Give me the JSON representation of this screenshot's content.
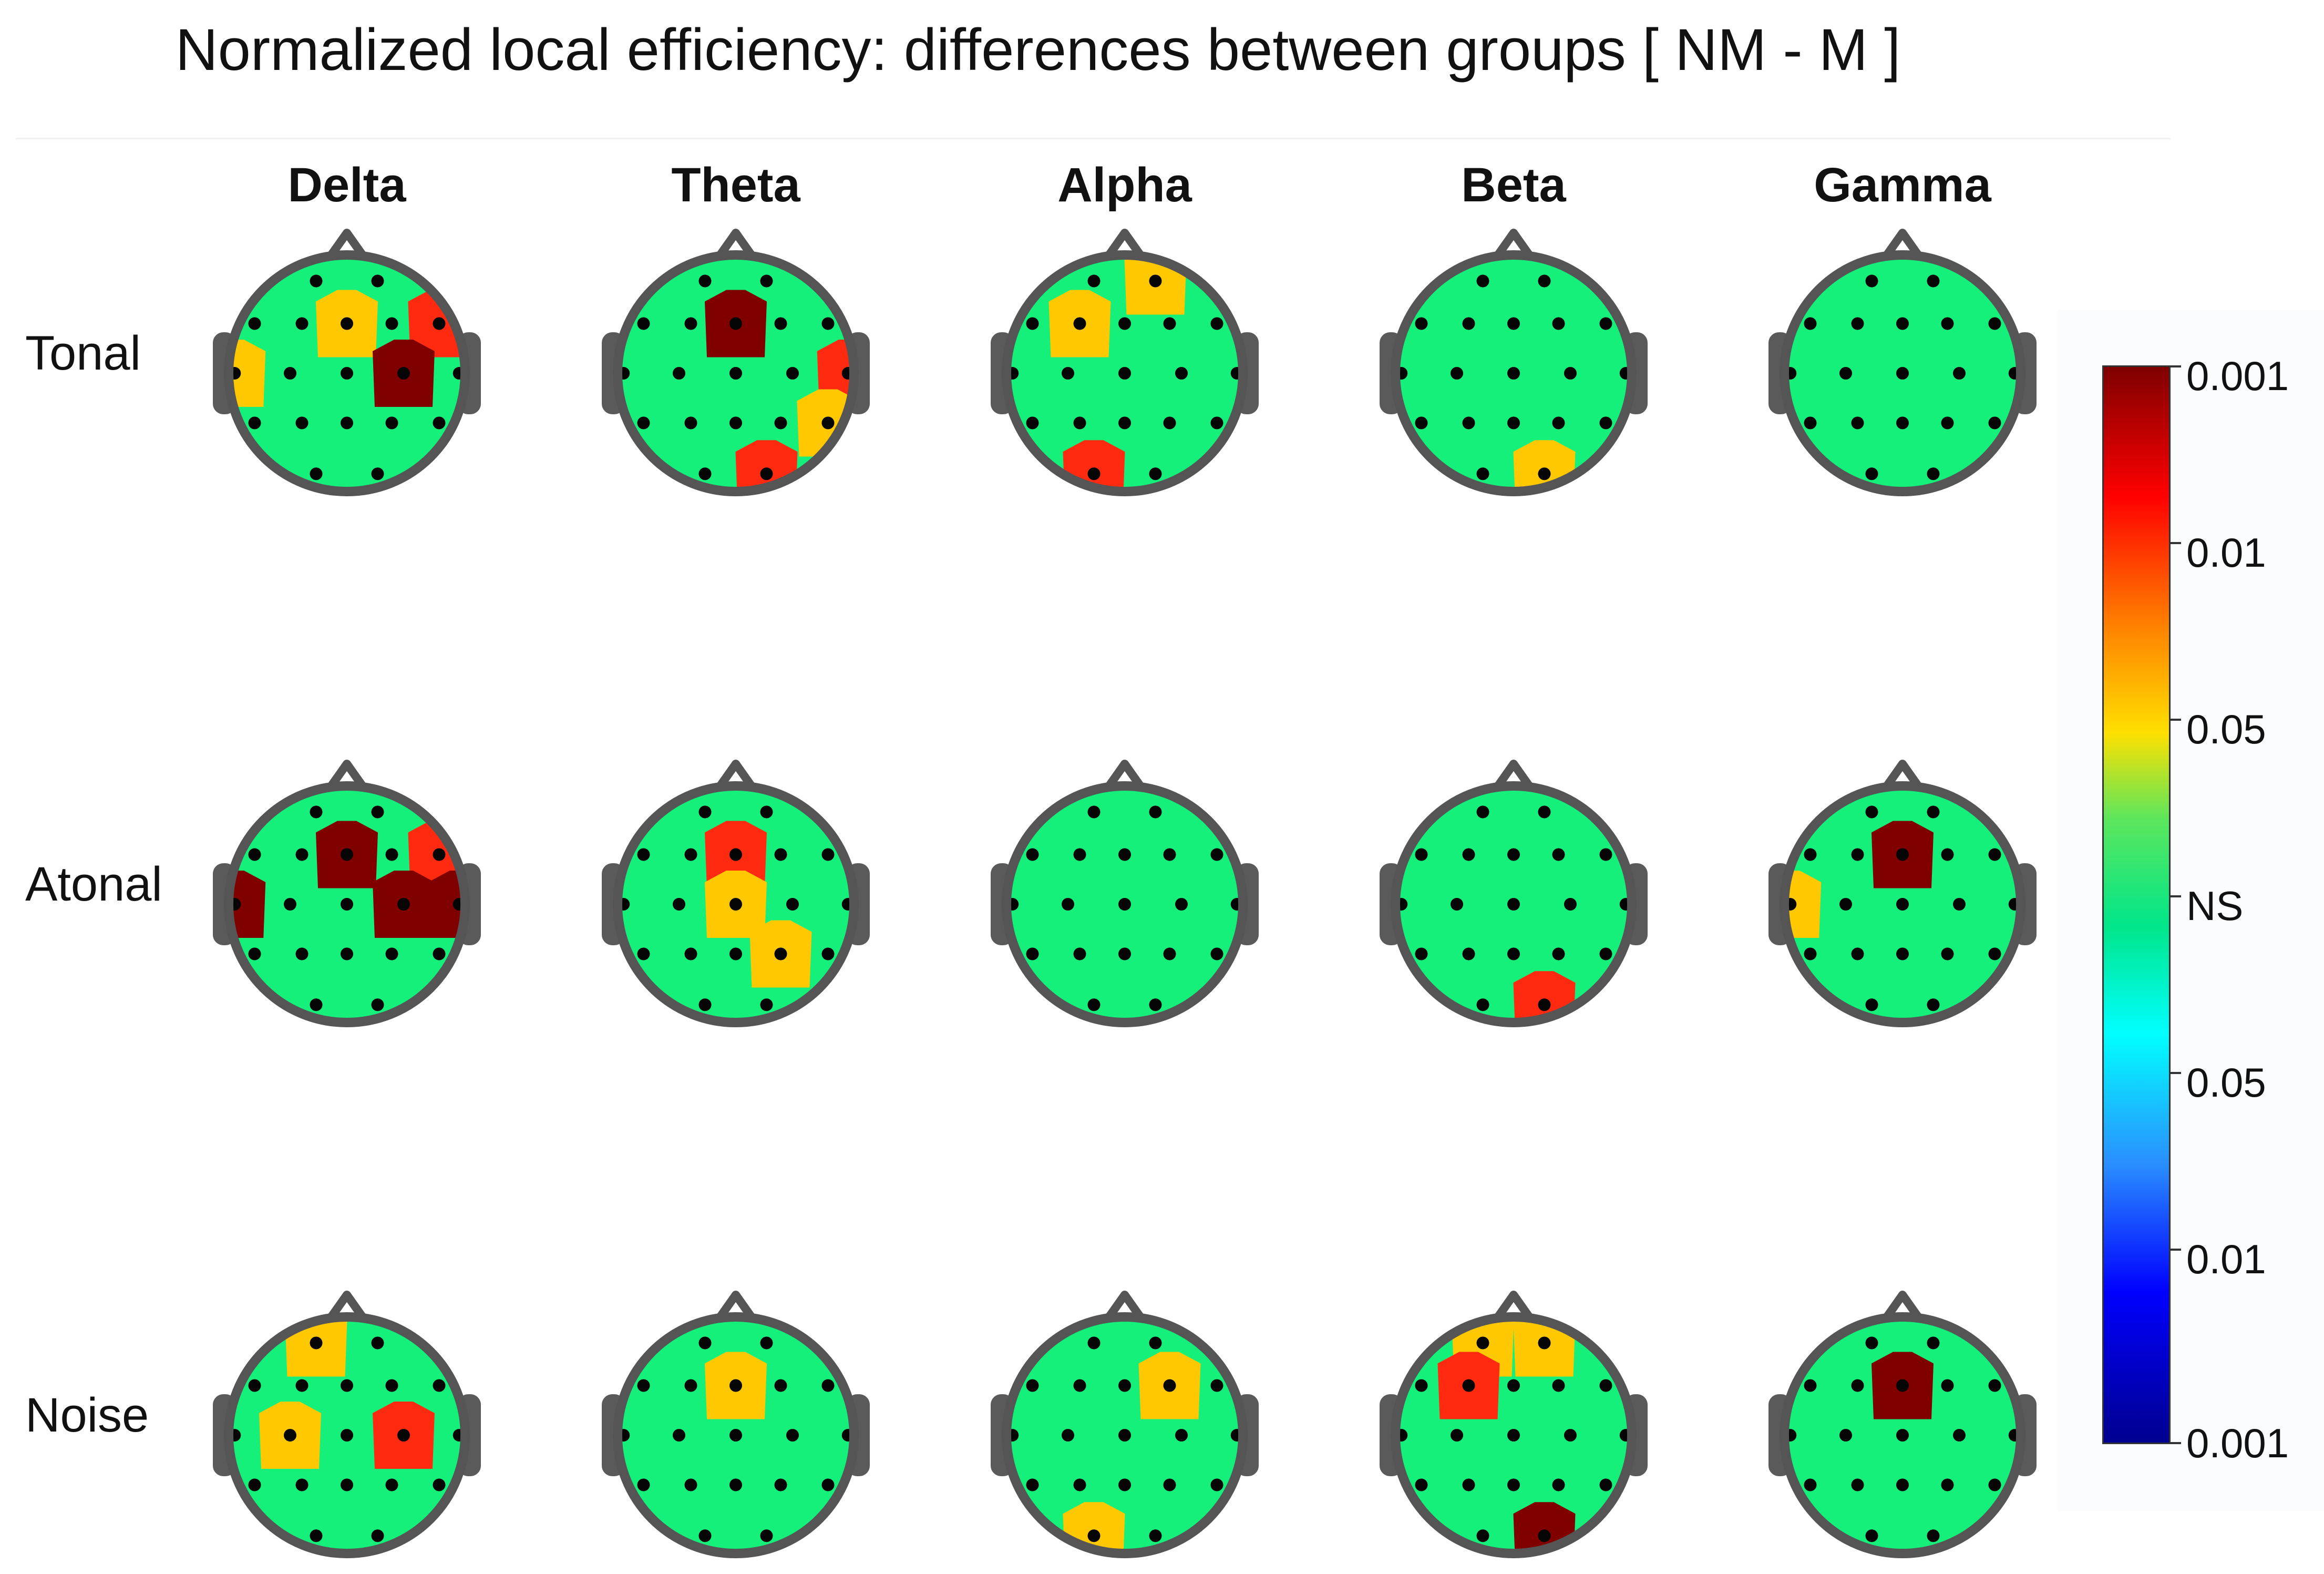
{
  "title": "Normalized local efficiency: differences between groups [ NM - M ]",
  "columns": [
    "Delta",
    "Theta",
    "Alpha",
    "Beta",
    "Gamma"
  ],
  "rows": [
    "Tonal",
    "Atonal",
    "Noise"
  ],
  "colorbar": {
    "labels": [
      "0.001",
      "0.01",
      "0.05",
      "NS",
      "0.05",
      "0.01",
      "0.001"
    ],
    "colors": {
      "p_0001": "#800000",
      "p_001": "#ff2a10",
      "p_005": "#ffc800",
      "ns": "#14f07a",
      "head_outline": "#555555"
    }
  },
  "electrodes": [
    "Fp1",
    "Fp2",
    "F7",
    "F3",
    "Fz",
    "F4",
    "F8",
    "T7",
    "C3",
    "Cz",
    "C4",
    "T8",
    "P7",
    "P3",
    "Pz",
    "P4",
    "P8",
    "O1",
    "O2"
  ],
  "significant": [
    {
      "row": 0,
      "col": 0,
      "spots": [
        {
          "e": "Fz",
          "level": "0.05"
        },
        {
          "e": "F8",
          "level": "0.01"
        },
        {
          "e": "T7",
          "level": "0.05"
        },
        {
          "e": "C4",
          "level": "0.001"
        }
      ]
    },
    {
      "row": 0,
      "col": 1,
      "spots": [
        {
          "e": "Fz",
          "level": "0.001"
        },
        {
          "e": "T8",
          "level": "0.01"
        },
        {
          "e": "P8",
          "level": "0.05"
        },
        {
          "e": "O2",
          "level": "0.01"
        }
      ]
    },
    {
      "row": 0,
      "col": 2,
      "spots": [
        {
          "e": "F3",
          "level": "0.05"
        },
        {
          "e": "Fp2",
          "level": "0.05"
        },
        {
          "e": "O1",
          "level": "0.01"
        }
      ]
    },
    {
      "row": 0,
      "col": 3,
      "spots": [
        {
          "e": "O2",
          "level": "0.05"
        }
      ]
    },
    {
      "row": 0,
      "col": 4,
      "spots": []
    },
    {
      "row": 1,
      "col": 0,
      "spots": [
        {
          "e": "Fz",
          "level": "0.001"
        },
        {
          "e": "F8",
          "level": "0.01"
        },
        {
          "e": "T7",
          "level": "0.001"
        },
        {
          "e": "C4",
          "level": "0.001"
        },
        {
          "e": "T8",
          "level": "0.001"
        }
      ]
    },
    {
      "row": 1,
      "col": 1,
      "spots": [
        {
          "e": "Fz",
          "level": "0.01"
        },
        {
          "e": "Cz",
          "level": "0.05"
        },
        {
          "e": "P4",
          "level": "0.05"
        }
      ]
    },
    {
      "row": 1,
      "col": 2,
      "spots": []
    },
    {
      "row": 1,
      "col": 3,
      "spots": [
        {
          "e": "O2",
          "level": "0.01"
        }
      ]
    },
    {
      "row": 1,
      "col": 4,
      "spots": [
        {
          "e": "Fz",
          "level": "0.001"
        },
        {
          "e": "T7",
          "level": "0.05"
        }
      ]
    },
    {
      "row": 2,
      "col": 0,
      "spots": [
        {
          "e": "Fp1",
          "level": "0.05"
        },
        {
          "e": "C3",
          "level": "0.05"
        },
        {
          "e": "C4",
          "level": "0.01"
        }
      ]
    },
    {
      "row": 2,
      "col": 1,
      "spots": [
        {
          "e": "Fz",
          "level": "0.05"
        }
      ]
    },
    {
      "row": 2,
      "col": 2,
      "spots": [
        {
          "e": "F4",
          "level": "0.05"
        },
        {
          "e": "O1",
          "level": "0.05"
        }
      ]
    },
    {
      "row": 2,
      "col": 3,
      "spots": [
        {
          "e": "Fp1",
          "level": "0.05"
        },
        {
          "e": "Fp2",
          "level": "0.05"
        },
        {
          "e": "F3",
          "level": "0.01"
        },
        {
          "e": "O2",
          "level": "0.001"
        }
      ]
    },
    {
      "row": 2,
      "col": 4,
      "spots": [
        {
          "e": "Fz",
          "level": "0.001"
        }
      ]
    }
  ]
}
